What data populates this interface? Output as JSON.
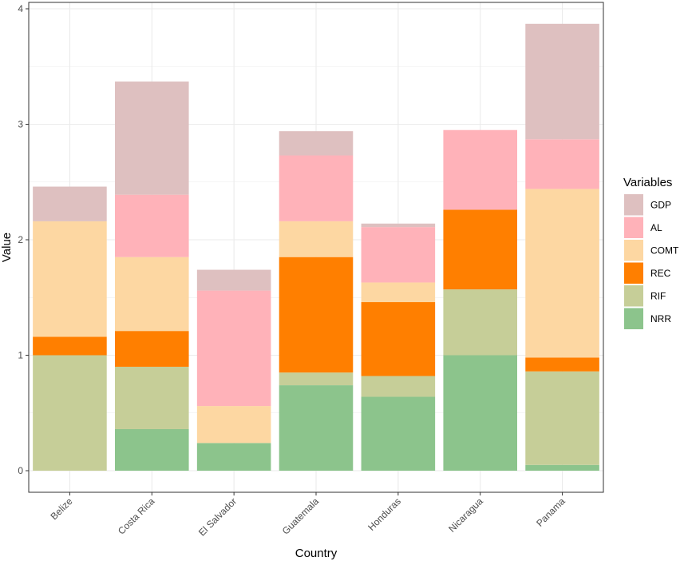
{
  "chart_data": {
    "type": "bar",
    "stacked": true,
    "title": "",
    "xlabel": "Country",
    "ylabel": "Value",
    "ylim": [
      0,
      4
    ],
    "yticks": [
      "0",
      "1",
      "2",
      "3",
      "4"
    ],
    "grid": true,
    "legend_position": "right",
    "legend_title": "Variables",
    "categories": [
      "Belize",
      "Costa Rica",
      "El Salvador",
      "Guatemala",
      "Honduras",
      "Nicaragua",
      "Panama"
    ],
    "series": [
      {
        "name": "NRR",
        "color": "#8CC48C",
        "values": [
          0.0,
          0.36,
          0.24,
          0.74,
          0.64,
          1.0,
          0.05
        ]
      },
      {
        "name": "RIF",
        "color": "#C6CE98",
        "values": [
          1.0,
          0.54,
          0.0,
          0.11,
          0.18,
          0.57,
          0.81
        ]
      },
      {
        "name": "REC",
        "color": "#FF7F00",
        "values": [
          0.16,
          0.31,
          0.0,
          1.0,
          0.64,
          0.69,
          0.12
        ]
      },
      {
        "name": "COMT",
        "color": "#FDD7A2",
        "values": [
          1.0,
          0.64,
          0.32,
          0.31,
          0.17,
          0.0,
          1.46
        ]
      },
      {
        "name": "AL",
        "color": "#FFB2B9",
        "values": [
          0.0,
          0.54,
          1.0,
          0.57,
          0.48,
          0.69,
          0.43
        ]
      },
      {
        "name": "GDP",
        "color": "#DEC0C0",
        "values": [
          0.3,
          0.98,
          0.18,
          0.21,
          0.03,
          0.0,
          1.0
        ]
      }
    ],
    "legend_order": [
      "GDP",
      "AL",
      "COMT",
      "REC",
      "RIF",
      "NRR"
    ]
  }
}
